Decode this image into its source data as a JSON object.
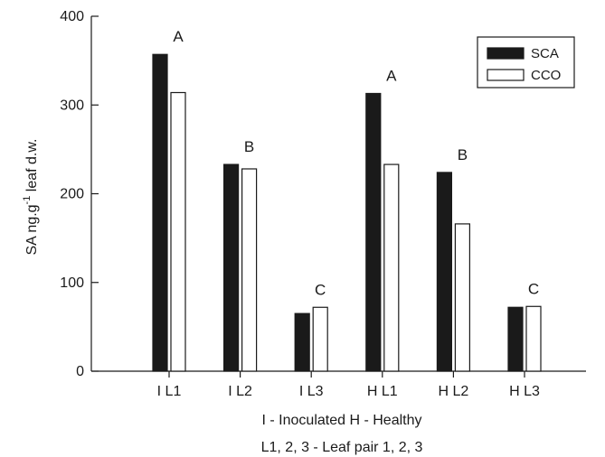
{
  "chart_data": {
    "type": "bar",
    "categories": [
      "I L1",
      "I L2",
      "I L3",
      "H L1",
      "H L2",
      "H L3"
    ],
    "series": [
      {
        "name": "SCA",
        "values": [
          357,
          233,
          65,
          313,
          224,
          72
        ],
        "color": "#1a1a1a"
      },
      {
        "name": "CCO",
        "values": [
          314,
          228,
          72,
          233,
          166,
          73
        ],
        "color": "#ffffff"
      }
    ],
    "group_letters": [
      "A",
      "B",
      "C",
      "A",
      "B",
      "C"
    ],
    "ylabel": {
      "main": "SA ng.g",
      "superscript": "-1",
      "rest": " leaf d.w."
    },
    "xlabel_lines": [
      "I - Inoculated H - Healthy",
      "L1, 2, 3  - Leaf pair 1, 2, 3"
    ],
    "ylim": [
      0,
      400
    ],
    "yticks": [
      0,
      100,
      200,
      300,
      400
    ],
    "legend_position": "top-right",
    "grid": false
  }
}
